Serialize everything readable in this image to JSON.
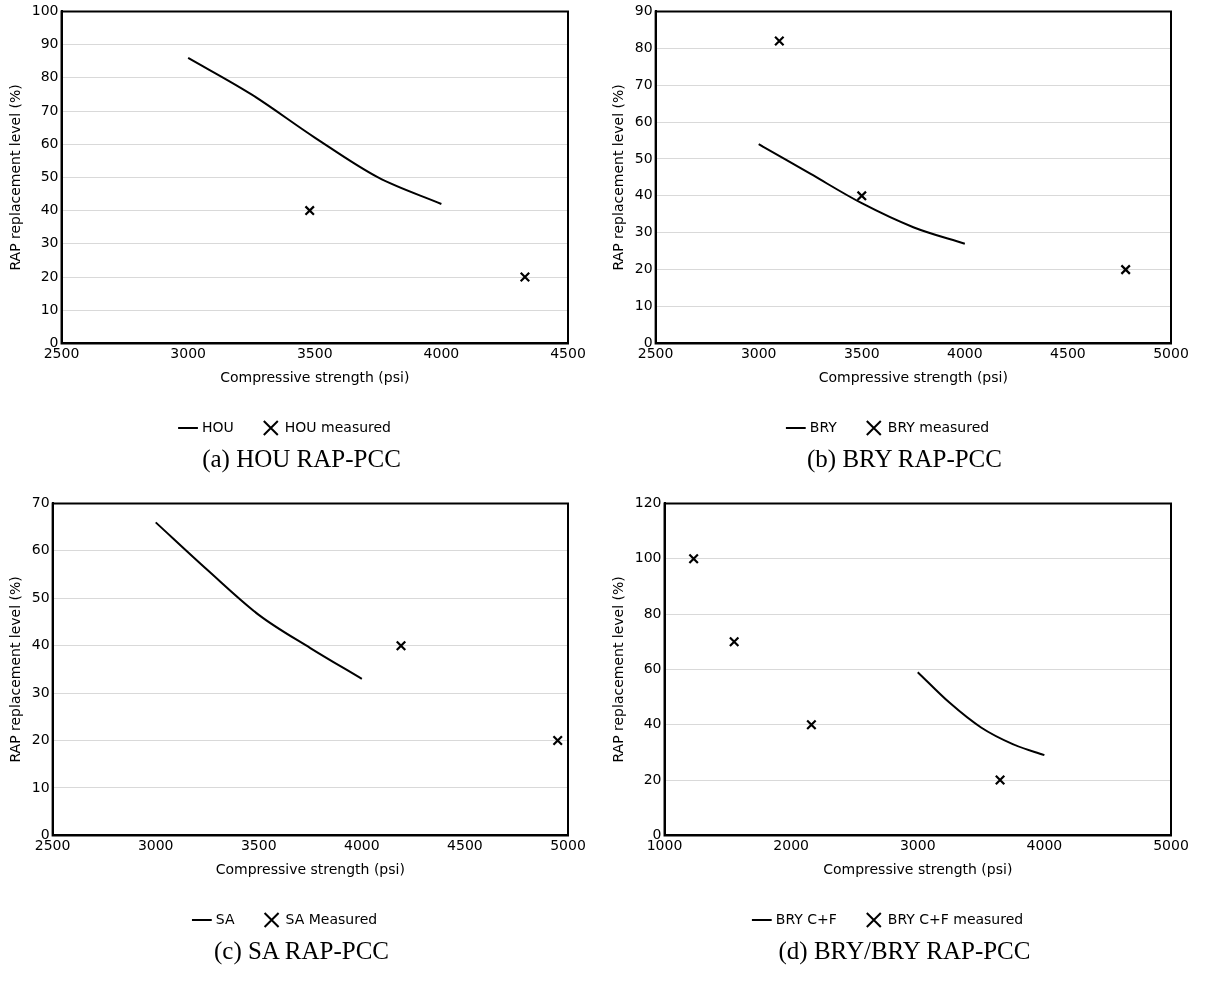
{
  "chart_data": [
    {
      "type": "line",
      "xlabel": "Compressive strength (psi)",
      "ylabel": "RAP replacement level (%)",
      "xlim": [
        2500,
        4500
      ],
      "xticks": [
        2500,
        3000,
        3500,
        4000,
        4500
      ],
      "ylim": [
        0,
        100
      ],
      "yticks": [
        0,
        10,
        20,
        30,
        40,
        50,
        60,
        70,
        80,
        90,
        100
      ],
      "grid": "y",
      "legend": "bottom",
      "annotations": [
        "(a) HOU RAP-PCC"
      ],
      "series": [
        {
          "name": "HOU",
          "color": "#000000",
          "marker": "none",
          "x": [
            3000,
            3250,
            3500,
            3750,
            4000
          ],
          "values": [
            86,
            75,
            62,
            50,
            42
          ]
        },
        {
          "name": "HOU measured",
          "type": "scatter",
          "color": "#000000",
          "marker": "cross",
          "x": [
            3480,
            4330
          ],
          "values": [
            40,
            20
          ]
        }
      ]
    },
    {
      "type": "line",
      "xlabel": "Compressive strength (psi)",
      "ylabel": "RAP replacement level (%)",
      "xlim": [
        2500,
        5000
      ],
      "xticks": [
        2500,
        3000,
        3500,
        4000,
        4500,
        5000
      ],
      "ylim": [
        0,
        90
      ],
      "yticks": [
        0,
        10,
        20,
        30,
        40,
        50,
        60,
        70,
        80,
        90
      ],
      "grid": "y",
      "legend": "bottom",
      "annotations": [
        "(b) BRY RAP-PCC"
      ],
      "series": [
        {
          "name": "BRY",
          "color": "#000000",
          "marker": "none",
          "x": [
            3000,
            3250,
            3500,
            3750,
            4000
          ],
          "values": [
            54,
            46,
            38,
            31.5,
            27
          ]
        },
        {
          "name": "BRY measured",
          "type": "scatter",
          "color": "#000000",
          "marker": "cross",
          "x": [
            3100,
            3500,
            4780
          ],
          "values": [
            82,
            40,
            20
          ]
        }
      ]
    },
    {
      "type": "line",
      "xlabel": "Compressive strength (psi)",
      "ylabel": "RAP replacement level (%)",
      "xlim": [
        2500,
        5000
      ],
      "xticks": [
        2500,
        3000,
        3500,
        4000,
        4500,
        5000
      ],
      "ylim": [
        0,
        70
      ],
      "yticks": [
        0,
        10,
        20,
        30,
        40,
        50,
        60,
        70
      ],
      "grid": "y",
      "legend": "bottom",
      "annotations": [
        "(c) SA RAP-PCC"
      ],
      "series": [
        {
          "name": "SA",
          "color": "#000000",
          "marker": "none",
          "x": [
            3000,
            3250,
            3500,
            3750,
            4000
          ],
          "values": [
            66,
            56,
            46.5,
            39.5,
            33
          ]
        },
        {
          "name": "SA Measured",
          "type": "scatter",
          "color": "#000000",
          "marker": "cross",
          "x": [
            4190,
            4950
          ],
          "values": [
            40,
            20
          ]
        }
      ]
    },
    {
      "type": "line",
      "xlabel": "Compressive strength (psi)",
      "ylabel": "RAP replacement level (%)",
      "xlim": [
        1000,
        5000
      ],
      "xticks": [
        1000,
        2000,
        3000,
        4000,
        5000
      ],
      "ylim": [
        0,
        120
      ],
      "yticks": [
        0,
        20,
        40,
        60,
        80,
        100,
        120
      ],
      "grid": "y",
      "legend": "bottom",
      "annotations": [
        "(d) BRY/BRY RAP-PCC"
      ],
      "series": [
        {
          "name": "BRY C+F",
          "color": "#000000",
          "marker": "none",
          "x": [
            3000,
            3250,
            3500,
            3750,
            4000
          ],
          "values": [
            59,
            48,
            39,
            33,
            29
          ]
        },
        {
          "name": "BRY C+F measured",
          "type": "scatter",
          "color": "#000000",
          "marker": "cross",
          "x": [
            1230,
            1550,
            2160,
            3650
          ],
          "values": [
            100,
            70,
            40,
            20
          ]
        }
      ]
    }
  ]
}
